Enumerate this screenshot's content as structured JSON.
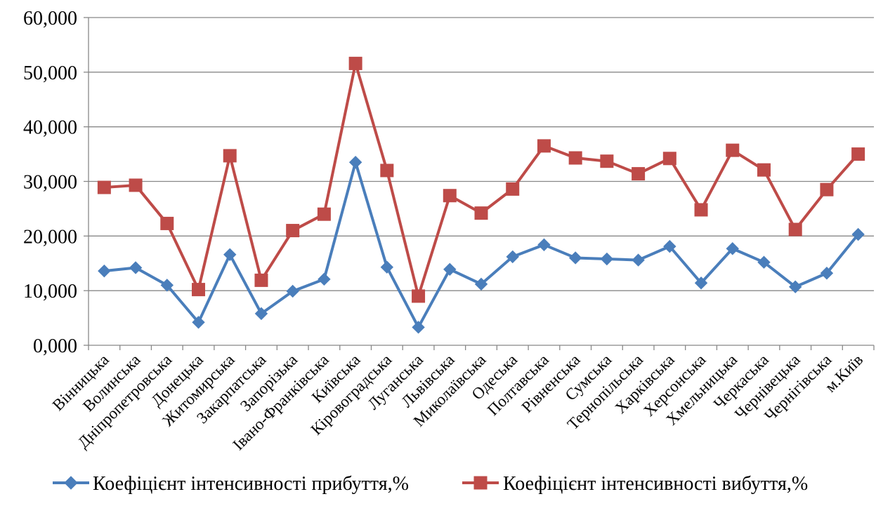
{
  "chart_data": {
    "type": "line",
    "categories": [
      "Вінницька",
      "Волинська",
      "Дніпропетровська",
      "Донецька",
      "Житомирська",
      "Закарпатська",
      "Запорізька",
      "Івано-Франківська",
      "Київська",
      "Кіровоградська",
      "Луганська",
      "Львівська",
      "Миколаївська",
      "Одеська",
      "Полтавська",
      "Рівненська",
      "Сумська",
      "Тернопільська",
      "Харківська",
      "Херсонська",
      "Хмельницька",
      "Черкаська",
      "Чернівецька",
      "Чернігівська",
      "м.Київ"
    ],
    "series": [
      {
        "name": "Коефіцієнт інтенсивності прибуття,%",
        "color": "#4a7ebb",
        "marker": "diamond",
        "values": [
          13.6,
          14.2,
          11.0,
          4.2,
          16.6,
          5.8,
          9.9,
          12.1,
          33.5,
          14.3,
          3.3,
          13.9,
          11.2,
          16.2,
          18.4,
          16.0,
          15.8,
          15.6,
          18.1,
          11.4,
          17.7,
          15.2,
          10.7,
          13.2,
          20.3
        ]
      },
      {
        "name": "Коефіцієнт інтенсивності вибуття,%",
        "color": "#be4b48",
        "marker": "square",
        "values": [
          28.9,
          29.3,
          22.3,
          10.2,
          34.7,
          11.9,
          21.0,
          24.0,
          51.6,
          32.0,
          9.0,
          27.4,
          24.2,
          28.6,
          36.5,
          34.3,
          33.7,
          31.4,
          34.2,
          24.8,
          35.7,
          32.1,
          21.2,
          28.5,
          35.0
        ]
      }
    ],
    "ylim": [
      0,
      60
    ],
    "yticks": [
      "0,000",
      "10,000",
      "20,000",
      "30,000",
      "40,000",
      "50,000",
      "60,000"
    ],
    "ytick_values": [
      0,
      10,
      20,
      30,
      40,
      50,
      60
    ],
    "grid": true,
    "legend": "bottom",
    "title": "",
    "xlabel": "",
    "ylabel": ""
  }
}
